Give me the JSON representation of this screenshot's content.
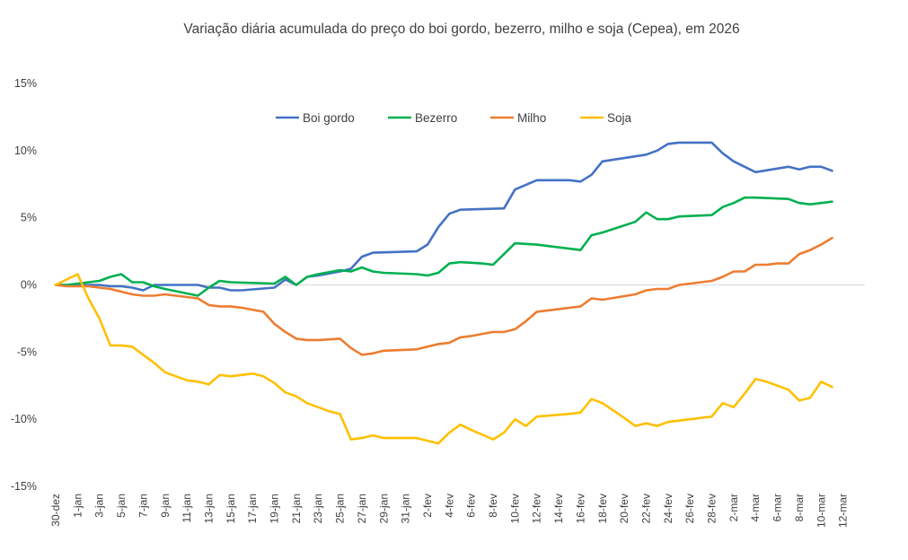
{
  "chart_data": {
    "type": "line",
    "title": "Variação diária acumulada do preço do boi gordo, bezerro, milho e soja (Cepea), em 2026",
    "xlabel": "",
    "ylabel": "",
    "ylim": [
      -15,
      15
    ],
    "yticks": [
      15,
      10,
      5,
      0,
      -5,
      -10,
      -15
    ],
    "ytick_labels": [
      "15%",
      "10%",
      "5%",
      "0%",
      "-5%",
      "-10%",
      "-15%"
    ],
    "x_day_range": [
      0,
      74
    ],
    "xtick_days": [
      0,
      2,
      4,
      6,
      8,
      10,
      12,
      14,
      16,
      18,
      20,
      22,
      24,
      26,
      28,
      30,
      32,
      34,
      36,
      38,
      40,
      42,
      44,
      46,
      48,
      50,
      52,
      54,
      56,
      58,
      60,
      62,
      64,
      66,
      68,
      70,
      72
    ],
    "xtick_labels": [
      "30-dez",
      "1-jan",
      "3-jan",
      "5-jan",
      "7-jan",
      "9-jan",
      "11-jan",
      "13-jan",
      "15-jan",
      "17-jan",
      "19-jan",
      "21-jan",
      "23-jan",
      "25-jan",
      "27-jan",
      "29-jan",
      "31-jan",
      "2-fev",
      "4-fev",
      "6-fev",
      "8-fev",
      "10-fev",
      "12-fev",
      "14-fev",
      "16-fev",
      "18-fev",
      "20-fev",
      "22-fev",
      "24-fev",
      "26-fev",
      "28-fev",
      "2-mar",
      "4-mar",
      "6-mar",
      "8-mar",
      "10-mar",
      "12-mar"
    ],
    "legend_position": "top-center",
    "series": [
      {
        "name": "Boi gordo",
        "color": "#4472C4",
        "points": [
          [
            0,
            0
          ],
          [
            1,
            0
          ],
          [
            2,
            0
          ],
          [
            3,
            0
          ],
          [
            4,
            0
          ],
          [
            5,
            -0.1
          ],
          [
            6,
            -0.1
          ],
          [
            7,
            -0.2
          ],
          [
            8,
            -0.4
          ],
          [
            9,
            0
          ],
          [
            10,
            0
          ],
          [
            11,
            0
          ],
          [
            12,
            0
          ],
          [
            13,
            0
          ],
          [
            14,
            -0.2
          ],
          [
            15,
            -0.2
          ],
          [
            16,
            -0.4
          ],
          [
            17,
            -0.4
          ],
          [
            20,
            -0.2
          ],
          [
            21,
            0.4
          ],
          [
            22,
            0
          ],
          [
            23,
            0.6
          ],
          [
            24,
            0.7
          ],
          [
            26,
            1.0
          ],
          [
            27,
            1.2
          ],
          [
            28,
            2.1
          ],
          [
            29,
            2.4
          ],
          [
            33,
            2.5
          ],
          [
            34,
            3.0
          ],
          [
            35,
            4.3
          ],
          [
            36,
            5.3
          ],
          [
            37,
            5.6
          ],
          [
            41,
            5.7
          ],
          [
            42,
            7.1
          ],
          [
            44,
            7.8
          ],
          [
            47,
            7.8
          ],
          [
            48,
            7.7
          ],
          [
            49,
            8.2
          ],
          [
            50,
            9.2
          ],
          [
            54,
            9.7
          ],
          [
            55,
            10.0
          ],
          [
            56,
            10.5
          ],
          [
            57,
            10.6
          ],
          [
            60,
            10.6
          ],
          [
            61,
            9.8
          ],
          [
            62,
            9.2
          ],
          [
            64,
            8.4
          ],
          [
            67,
            8.8
          ],
          [
            68,
            8.6
          ],
          [
            69,
            8.8
          ],
          [
            70,
            8.8
          ],
          [
            71,
            8.5
          ]
        ]
      },
      {
        "name": "Bezerro",
        "color": "#00B050",
        "points": [
          [
            0,
            0
          ],
          [
            1,
            0
          ],
          [
            2,
            0.1
          ],
          [
            3,
            0.2
          ],
          [
            4,
            0.3
          ],
          [
            5,
            0.6
          ],
          [
            6,
            0.8
          ],
          [
            7,
            0.2
          ],
          [
            8,
            0.2
          ],
          [
            9,
            -0.1
          ],
          [
            10,
            -0.3
          ],
          [
            13,
            -0.8
          ],
          [
            14,
            -0.2
          ],
          [
            15,
            0.3
          ],
          [
            16,
            0.2
          ],
          [
            20,
            0.1
          ],
          [
            21,
            0.6
          ],
          [
            22,
            0
          ],
          [
            23,
            0.6
          ],
          [
            24,
            0.8
          ],
          [
            26,
            1.1
          ],
          [
            27,
            1.0
          ],
          [
            28,
            1.3
          ],
          [
            29,
            1.0
          ],
          [
            30,
            0.9
          ],
          [
            33,
            0.8
          ],
          [
            34,
            0.7
          ],
          [
            35,
            0.9
          ],
          [
            36,
            1.6
          ],
          [
            37,
            1.7
          ],
          [
            39,
            1.6
          ],
          [
            40,
            1.5
          ],
          [
            41,
            2.3
          ],
          [
            42,
            3.1
          ],
          [
            44,
            3.0
          ],
          [
            48,
            2.6
          ],
          [
            49,
            3.7
          ],
          [
            50,
            3.9
          ],
          [
            53,
            4.7
          ],
          [
            54,
            5.4
          ],
          [
            55,
            4.9
          ],
          [
            56,
            4.9
          ],
          [
            57,
            5.1
          ],
          [
            60,
            5.2
          ],
          [
            61,
            5.8
          ],
          [
            62,
            6.1
          ],
          [
            63,
            6.5
          ],
          [
            64,
            6.5
          ],
          [
            67,
            6.4
          ],
          [
            68,
            6.1
          ],
          [
            69,
            6.0
          ],
          [
            70,
            6.1
          ],
          [
            71,
            6.2
          ]
        ]
      },
      {
        "name": "Milho",
        "color": "#ED7D31",
        "points": [
          [
            0,
            0
          ],
          [
            1,
            -0.1
          ],
          [
            2,
            -0.1
          ],
          [
            3,
            -0.1
          ],
          [
            4,
            -0.2
          ],
          [
            5,
            -0.3
          ],
          [
            6,
            -0.5
          ],
          [
            7,
            -0.7
          ],
          [
            8,
            -0.8
          ],
          [
            9,
            -0.8
          ],
          [
            10,
            -0.7
          ],
          [
            12,
            -0.9
          ],
          [
            13,
            -1.0
          ],
          [
            14,
            -1.5
          ],
          [
            15,
            -1.6
          ],
          [
            16,
            -1.6
          ],
          [
            17,
            -1.7
          ],
          [
            19,
            -2.0
          ],
          [
            20,
            -2.9
          ],
          [
            21,
            -3.5
          ],
          [
            22,
            -4.0
          ],
          [
            23,
            -4.1
          ],
          [
            24,
            -4.1
          ],
          [
            26,
            -4.0
          ],
          [
            27,
            -4.7
          ],
          [
            28,
            -5.2
          ],
          [
            29,
            -5.1
          ],
          [
            30,
            -4.9
          ],
          [
            33,
            -4.8
          ],
          [
            34,
            -4.6
          ],
          [
            35,
            -4.4
          ],
          [
            36,
            -4.3
          ],
          [
            37,
            -3.9
          ],
          [
            38,
            -3.8
          ],
          [
            40,
            -3.5
          ],
          [
            41,
            -3.5
          ],
          [
            42,
            -3.3
          ],
          [
            43,
            -2.7
          ],
          [
            44,
            -2.0
          ],
          [
            45,
            -1.9
          ],
          [
            48,
            -1.6
          ],
          [
            49,
            -1.0
          ],
          [
            50,
            -1.1
          ],
          [
            53,
            -0.7
          ],
          [
            54,
            -0.4
          ],
          [
            55,
            -0.3
          ],
          [
            56,
            -0.3
          ],
          [
            57,
            0
          ],
          [
            58,
            0.1
          ],
          [
            60,
            0.3
          ],
          [
            61,
            0.6
          ],
          [
            62,
            1.0
          ],
          [
            63,
            1.0
          ],
          [
            64,
            1.5
          ],
          [
            65,
            1.5
          ],
          [
            66,
            1.6
          ],
          [
            67,
            1.6
          ],
          [
            68,
            2.3
          ],
          [
            69,
            2.6
          ],
          [
            70,
            3.0
          ],
          [
            71,
            3.5
          ]
        ]
      },
      {
        "name": "Soja",
        "color": "#FFC000",
        "points": [
          [
            0,
            0
          ],
          [
            1,
            0.4
          ],
          [
            2,
            0.8
          ],
          [
            3,
            -1.0
          ],
          [
            4,
            -2.5
          ],
          [
            5,
            -4.5
          ],
          [
            6,
            -4.5
          ],
          [
            7,
            -4.6
          ],
          [
            8,
            -5.2
          ],
          [
            9,
            -5.8
          ],
          [
            10,
            -6.5
          ],
          [
            12,
            -7.1
          ],
          [
            13,
            -7.2
          ],
          [
            14,
            -7.4
          ],
          [
            15,
            -6.7
          ],
          [
            16,
            -6.8
          ],
          [
            18,
            -6.6
          ],
          [
            19,
            -6.8
          ],
          [
            20,
            -7.3
          ],
          [
            21,
            -8.0
          ],
          [
            22,
            -8.3
          ],
          [
            23,
            -8.8
          ],
          [
            25,
            -9.4
          ],
          [
            26,
            -9.6
          ],
          [
            27,
            -11.5
          ],
          [
            28,
            -11.4
          ],
          [
            29,
            -11.2
          ],
          [
            30,
            -11.4
          ],
          [
            33,
            -11.4
          ],
          [
            34,
            -11.6
          ],
          [
            35,
            -11.8
          ],
          [
            36,
            -11.0
          ],
          [
            37,
            -10.4
          ],
          [
            38,
            -10.8
          ],
          [
            40,
            -11.5
          ],
          [
            41,
            -11.0
          ],
          [
            42,
            -10.0
          ],
          [
            43,
            -10.5
          ],
          [
            44,
            -9.8
          ],
          [
            47,
            -9.6
          ],
          [
            48,
            -9.5
          ],
          [
            49,
            -8.5
          ],
          [
            50,
            -8.8
          ],
          [
            52,
            -9.9
          ],
          [
            53,
            -10.5
          ],
          [
            54,
            -10.3
          ],
          [
            55,
            -10.5
          ],
          [
            56,
            -10.2
          ],
          [
            57,
            -10.1
          ],
          [
            60,
            -9.8
          ],
          [
            61,
            -8.8
          ],
          [
            62,
            -9.1
          ],
          [
            63,
            -8.1
          ],
          [
            64,
            -7.0
          ],
          [
            65,
            -7.2
          ],
          [
            67,
            -7.8
          ],
          [
            68,
            -8.6
          ],
          [
            69,
            -8.4
          ],
          [
            70,
            -7.2
          ],
          [
            71,
            -7.6
          ]
        ]
      }
    ]
  }
}
